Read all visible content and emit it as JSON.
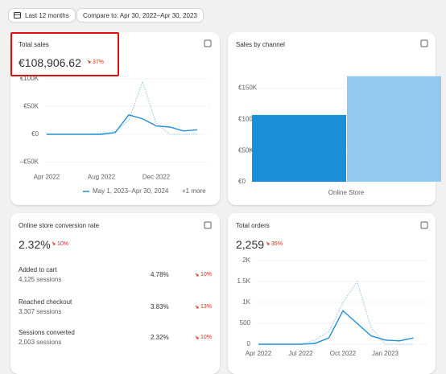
{
  "toolbar": {
    "date_range": "Last 12 months",
    "compare": "Compare to: Apr 30, 2022–Apr 30, 2023"
  },
  "total_sales": {
    "title": "Total sales",
    "value": "€108,906.62",
    "change": "37%",
    "chart": {
      "type": "line",
      "categories": [
        "Apr 2022",
        null,
        null,
        null,
        "Aug 2022",
        null,
        null,
        null,
        "Dec 2022",
        null,
        null,
        null
      ],
      "series": [
        {
          "name": "May 1, 2023–Apr 30, 2024",
          "color": "#1f8fd6",
          "values": [
            0,
            0,
            0,
            0,
            0,
            3000,
            35000,
            28000,
            15000,
            13000,
            6000,
            8000
          ]
        },
        {
          "color": "#8fc6ea",
          "dash": true,
          "values": [
            0,
            0,
            0,
            0,
            2000,
            5000,
            25000,
            95000,
            20000,
            0,
            0,
            0
          ]
        }
      ],
      "ylim": [
        -60000,
        110000
      ],
      "yticks": [
        {
          "value": -50000,
          "label": "–€50K"
        },
        {
          "value": 0,
          "label": "€0"
        },
        {
          "value": 50000,
          "label": "€50K"
        },
        {
          "value": 100000,
          "label": "€100K"
        }
      ],
      "legend_more": "+1 more"
    }
  },
  "sales_by_channel": {
    "title": "Sales by channel",
    "chart": {
      "type": "bar",
      "categories": [
        "Online Store"
      ],
      "series": [
        {
          "color": "#1a8fd6",
          "values": [
            107000
          ]
        },
        {
          "color": "#93c9ec",
          "values": [
            169000
          ]
        }
      ],
      "ylim": [
        0,
        170000
      ],
      "yticks": [
        {
          "value": 0,
          "label": "€0"
        },
        {
          "value": 50000,
          "label": "€50K"
        },
        {
          "value": 100000,
          "label": "€100K"
        },
        {
          "value": 150000,
          "label": "€150K"
        }
      ]
    }
  },
  "conversion": {
    "title": "Online store conversion rate",
    "value": "2.32%",
    "change": "10%",
    "rows": [
      {
        "label": "Added to cart",
        "sessions": "4,125 sessions",
        "rate": "4.78%",
        "change": "10%"
      },
      {
        "label": "Reached checkout",
        "sessions": "3,307 sessions",
        "rate": "3.83%",
        "change": "13%"
      },
      {
        "label": "Sessions converted",
        "sessions": "2,003 sessions",
        "rate": "2.32%",
        "change": "10%"
      }
    ]
  },
  "total_orders": {
    "title": "Total orders",
    "value": "2,259",
    "change": "35%",
    "chart": {
      "type": "line",
      "categories": [
        "Apr 2022",
        null,
        null,
        "Jul 2022",
        null,
        null,
        "Oct 2022",
        null,
        null,
        "Jan 2023",
        null,
        null
      ],
      "series": [
        {
          "color": "#1f8fd6",
          "values": [
            0,
            0,
            0,
            0,
            20,
            150,
            800,
            500,
            200,
            100,
            80,
            150
          ]
        },
        {
          "color": "#8fc6ea",
          "dash": true,
          "values": [
            0,
            0,
            0,
            0,
            100,
            300,
            1000,
            1500,
            400,
            0,
            0,
            0
          ]
        }
      ],
      "ylim": [
        0,
        2000
      ],
      "yticks": [
        0,
        500,
        {
          "value": 1000,
          "label": "1K"
        },
        {
          "value": 1500,
          "label": "1.5K"
        },
        {
          "value": 2000,
          "label": "2K"
        }
      ]
    }
  }
}
